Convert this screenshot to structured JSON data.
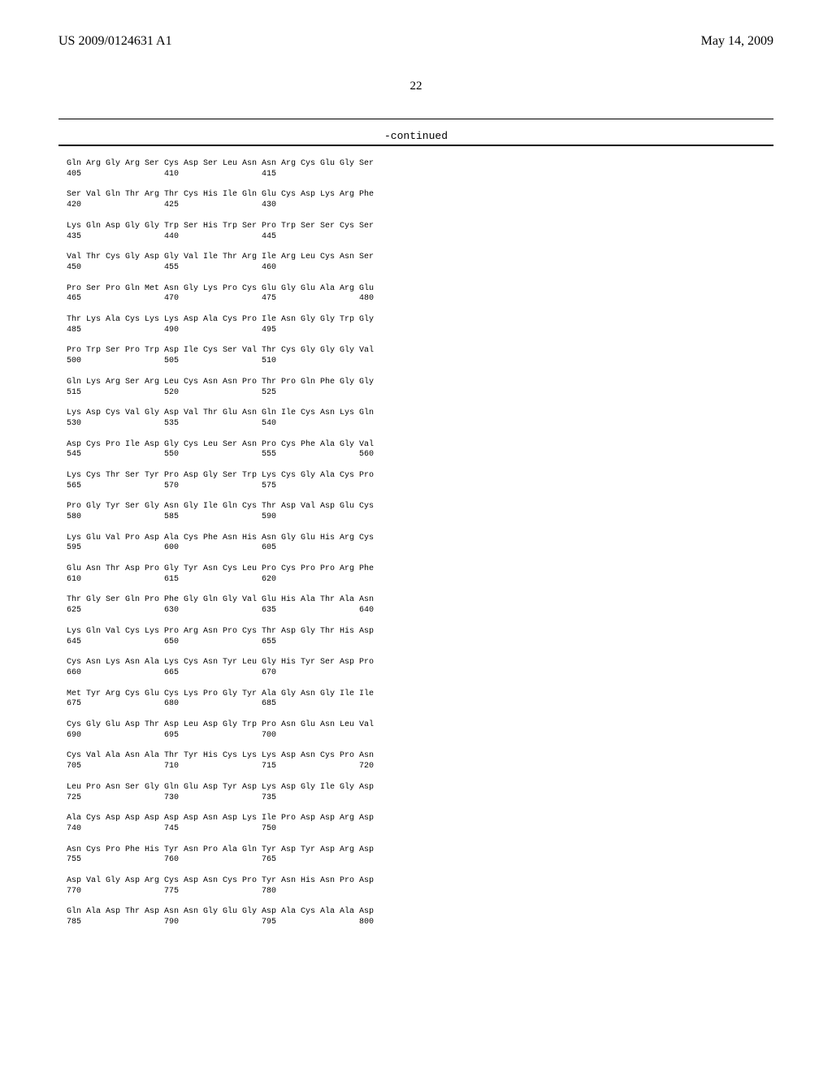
{
  "header": {
    "left": "US 2009/0124631 A1",
    "right": "May 14, 2009"
  },
  "page_number": "22",
  "continued": "-continued",
  "groups": [
    {
      "row1": "Gln Arg Gly Arg Ser Cys Asp Ser Leu Asn Asn Arg Cys Glu Gly Ser",
      "row2": "405                 410                 415"
    },
    {
      "row1": "Ser Val Gln Thr Arg Thr Cys His Ile Gln Glu Cys Asp Lys Arg Phe",
      "row2": "420                 425                 430"
    },
    {
      "row1": "Lys Gln Asp Gly Gly Trp Ser His Trp Ser Pro Trp Ser Ser Cys Ser",
      "row2": "435                 440                 445"
    },
    {
      "row1": "Val Thr Cys Gly Asp Gly Val Ile Thr Arg Ile Arg Leu Cys Asn Ser",
      "row2": "450                 455                 460"
    },
    {
      "row1": "Pro Ser Pro Gln Met Asn Gly Lys Pro Cys Glu Gly Glu Ala Arg Glu",
      "row2": "465                 470                 475                 480"
    },
    {
      "row1": "Thr Lys Ala Cys Lys Lys Asp Ala Cys Pro Ile Asn Gly Gly Trp Gly",
      "row2": "485                 490                 495"
    },
    {
      "row1": "Pro Trp Ser Pro Trp Asp Ile Cys Ser Val Thr Cys Gly Gly Gly Val",
      "row2": "500                 505                 510"
    },
    {
      "row1": "Gln Lys Arg Ser Arg Leu Cys Asn Asn Pro Thr Pro Gln Phe Gly Gly",
      "row2": "515                 520                 525"
    },
    {
      "row1": "Lys Asp Cys Val Gly Asp Val Thr Glu Asn Gln Ile Cys Asn Lys Gln",
      "row2": "530                 535                 540"
    },
    {
      "row1": "Asp Cys Pro Ile Asp Gly Cys Leu Ser Asn Pro Cys Phe Ala Gly Val",
      "row2": "545                 550                 555                 560"
    },
    {
      "row1": "Lys Cys Thr Ser Tyr Pro Asp Gly Ser Trp Lys Cys Gly Ala Cys Pro",
      "row2": "565                 570                 575"
    },
    {
      "row1": "Pro Gly Tyr Ser Gly Asn Gly Ile Gln Cys Thr Asp Val Asp Glu Cys",
      "row2": "580                 585                 590"
    },
    {
      "row1": "Lys Glu Val Pro Asp Ala Cys Phe Asn His Asn Gly Glu His Arg Cys",
      "row2": "595                 600                 605"
    },
    {
      "row1": "Glu Asn Thr Asp Pro Gly Tyr Asn Cys Leu Pro Cys Pro Pro Arg Phe",
      "row2": "610                 615                 620"
    },
    {
      "row1": "Thr Gly Ser Gln Pro Phe Gly Gln Gly Val Glu His Ala Thr Ala Asn",
      "row2": "625                 630                 635                 640"
    },
    {
      "row1": "Lys Gln Val Cys Lys Pro Arg Asn Pro Cys Thr Asp Gly Thr His Asp",
      "row2": "645                 650                 655"
    },
    {
      "row1": "Cys Asn Lys Asn Ala Lys Cys Asn Tyr Leu Gly His Tyr Ser Asp Pro",
      "row2": "660                 665                 670"
    },
    {
      "row1": "Met Tyr Arg Cys Glu Cys Lys Pro Gly Tyr Ala Gly Asn Gly Ile Ile",
      "row2": "675                 680                 685"
    },
    {
      "row1": "Cys Gly Glu Asp Thr Asp Leu Asp Gly Trp Pro Asn Glu Asn Leu Val",
      "row2": "690                 695                 700"
    },
    {
      "row1": "Cys Val Ala Asn Ala Thr Tyr His Cys Lys Lys Asp Asn Cys Pro Asn",
      "row2": "705                 710                 715                 720"
    },
    {
      "row1": "Leu Pro Asn Ser Gly Gln Glu Asp Tyr Asp Lys Asp Gly Ile Gly Asp",
      "row2": "725                 730                 735"
    },
    {
      "row1": "Ala Cys Asp Asp Asp Asp Asp Asn Asp Lys Ile Pro Asp Asp Arg Asp",
      "row2": "740                 745                 750"
    },
    {
      "row1": "Asn Cys Pro Phe His Tyr Asn Pro Ala Gln Tyr Asp Tyr Asp Arg Asp",
      "row2": "755                 760                 765"
    },
    {
      "row1": "Asp Val Gly Asp Arg Cys Asp Asn Cys Pro Tyr Asn His Asn Pro Asp",
      "row2": "770                 775                 780"
    },
    {
      "row1": "Gln Ala Asp Thr Asp Asn Asn Gly Glu Gly Asp Ala Cys Ala Ala Asp",
      "row2": "785                 790                 795                 800"
    }
  ]
}
